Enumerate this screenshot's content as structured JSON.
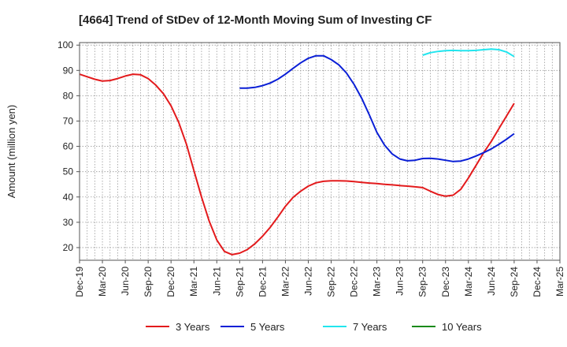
{
  "chart_data": {
    "type": "line",
    "title": "[4664]  Trend of StDev of 12-Month Moving Sum of Investing CF",
    "xlabel": "",
    "ylabel": "Amount (million yen)",
    "ylim": [
      15,
      101
    ],
    "yticks": [
      20,
      30,
      40,
      50,
      60,
      70,
      80,
      90,
      100
    ],
    "xticks": [
      "Dec-19",
      "Mar-20",
      "Jun-20",
      "Sep-20",
      "Dec-20",
      "Mar-21",
      "Jun-21",
      "Sep-21",
      "Dec-21",
      "Mar-22",
      "Jun-22",
      "Sep-22",
      "Dec-22",
      "Mar-23",
      "Jun-23",
      "Sep-23",
      "Dec-23",
      "Mar-24",
      "Jun-24",
      "Sep-24",
      "Dec-24",
      "Mar-25"
    ],
    "grid": true,
    "legend_position": "bottom",
    "series": [
      {
        "name": "3 Years",
        "color": "#e31a1c",
        "values": [
          [
            "Dec-19",
            88.5
          ],
          [
            "Jan-20",
            87.5
          ],
          [
            "Feb-20",
            86.5
          ],
          [
            "Mar-20",
            85.8
          ],
          [
            "Apr-20",
            86.0
          ],
          [
            "May-20",
            86.8
          ],
          [
            "Jun-20",
            87.8
          ],
          [
            "Jul-20",
            88.5
          ],
          [
            "Aug-20",
            88.3
          ],
          [
            "Sep-20",
            86.8
          ],
          [
            "Oct-20",
            84.2
          ],
          [
            "Nov-20",
            80.8
          ],
          [
            "Dec-20",
            76.0
          ],
          [
            "Jan-21",
            69.5
          ],
          [
            "Feb-21",
            61.0
          ],
          [
            "Mar-21",
            50.5
          ],
          [
            "Apr-21",
            40.0
          ],
          [
            "May-21",
            30.5
          ],
          [
            "Jun-21",
            23.0
          ],
          [
            "Jul-21",
            18.5
          ],
          [
            "Aug-21",
            17.2
          ],
          [
            "Sep-21",
            17.8
          ],
          [
            "Oct-21",
            19.2
          ],
          [
            "Nov-21",
            21.5
          ],
          [
            "Dec-21",
            24.5
          ],
          [
            "Jan-22",
            28.0
          ],
          [
            "Feb-22",
            32.0
          ],
          [
            "Mar-22",
            36.3
          ],
          [
            "Apr-22",
            39.8
          ],
          [
            "May-22",
            42.3
          ],
          [
            "Jun-22",
            44.3
          ],
          [
            "Jul-22",
            45.6
          ],
          [
            "Aug-22",
            46.2
          ],
          [
            "Sep-22",
            46.4
          ],
          [
            "Oct-22",
            46.4
          ],
          [
            "Nov-22",
            46.3
          ],
          [
            "Dec-22",
            46.1
          ],
          [
            "Jan-23",
            45.8
          ],
          [
            "Feb-23",
            45.5
          ],
          [
            "Mar-23",
            45.3
          ],
          [
            "Apr-23",
            45.0
          ],
          [
            "May-23",
            44.8
          ],
          [
            "Jun-23",
            44.5
          ],
          [
            "Jul-23",
            44.3
          ],
          [
            "Aug-23",
            44.0
          ],
          [
            "Sep-23",
            43.7
          ],
          [
            "Oct-23",
            42.3
          ],
          [
            "Nov-23",
            41.0
          ],
          [
            "Dec-23",
            40.3
          ],
          [
            "Jan-24",
            40.7
          ],
          [
            "Feb-24",
            43.0
          ],
          [
            "Mar-24",
            47.5
          ],
          [
            "Apr-24",
            52.5
          ],
          [
            "May-24",
            57.5
          ],
          [
            "Jun-24",
            62.0
          ],
          [
            "Jul-24",
            67.0
          ],
          [
            "Aug-24",
            72.0
          ],
          [
            "Sep-24",
            77.0
          ]
        ]
      },
      {
        "name": "5 Years",
        "color": "#0a1fd6",
        "values": [
          [
            "Sep-21",
            83.0
          ],
          [
            "Oct-21",
            83.0
          ],
          [
            "Nov-21",
            83.3
          ],
          [
            "Dec-21",
            84.0
          ],
          [
            "Jan-22",
            85.0
          ],
          [
            "Feb-22",
            86.5
          ],
          [
            "Mar-22",
            88.5
          ],
          [
            "Apr-22",
            90.8
          ],
          [
            "May-22",
            93.0
          ],
          [
            "Jun-22",
            94.8
          ],
          [
            "Jul-22",
            95.8
          ],
          [
            "Aug-22",
            95.8
          ],
          [
            "Sep-22",
            94.3
          ],
          [
            "Oct-22",
            92.2
          ],
          [
            "Nov-22",
            89.0
          ],
          [
            "Dec-22",
            84.5
          ],
          [
            "Jan-23",
            79.0
          ],
          [
            "Feb-23",
            72.5
          ],
          [
            "Mar-23",
            65.5
          ],
          [
            "Apr-23",
            60.5
          ],
          [
            "May-23",
            57.0
          ],
          [
            "Jun-23",
            55.0
          ],
          [
            "Jul-23",
            54.3
          ],
          [
            "Aug-23",
            54.5
          ],
          [
            "Sep-23",
            55.2
          ],
          [
            "Oct-23",
            55.3
          ],
          [
            "Nov-23",
            55.0
          ],
          [
            "Dec-23",
            54.5
          ],
          [
            "Jan-24",
            54.0
          ],
          [
            "Feb-24",
            54.2
          ],
          [
            "Mar-24",
            55.0
          ],
          [
            "Apr-24",
            56.2
          ],
          [
            "May-24",
            57.5
          ],
          [
            "Jun-24",
            59.0
          ],
          [
            "Jul-24",
            60.8
          ],
          [
            "Aug-24",
            62.8
          ],
          [
            "Sep-24",
            65.0
          ]
        ]
      },
      {
        "name": "7 Years",
        "color": "#22e5ee",
        "values": [
          [
            "Sep-23",
            96.0
          ],
          [
            "Oct-23",
            97.0
          ],
          [
            "Nov-23",
            97.5
          ],
          [
            "Dec-23",
            97.8
          ],
          [
            "Jan-24",
            97.9
          ],
          [
            "Feb-24",
            97.8
          ],
          [
            "Mar-24",
            97.8
          ],
          [
            "Apr-24",
            97.9
          ],
          [
            "May-24",
            98.2
          ],
          [
            "Jun-24",
            98.4
          ],
          [
            "Jul-24",
            98.2
          ],
          [
            "Aug-24",
            97.3
          ],
          [
            "Sep-24",
            95.5
          ]
        ]
      },
      {
        "name": "10 Years",
        "color": "#1a8a1a",
        "values": []
      }
    ]
  }
}
